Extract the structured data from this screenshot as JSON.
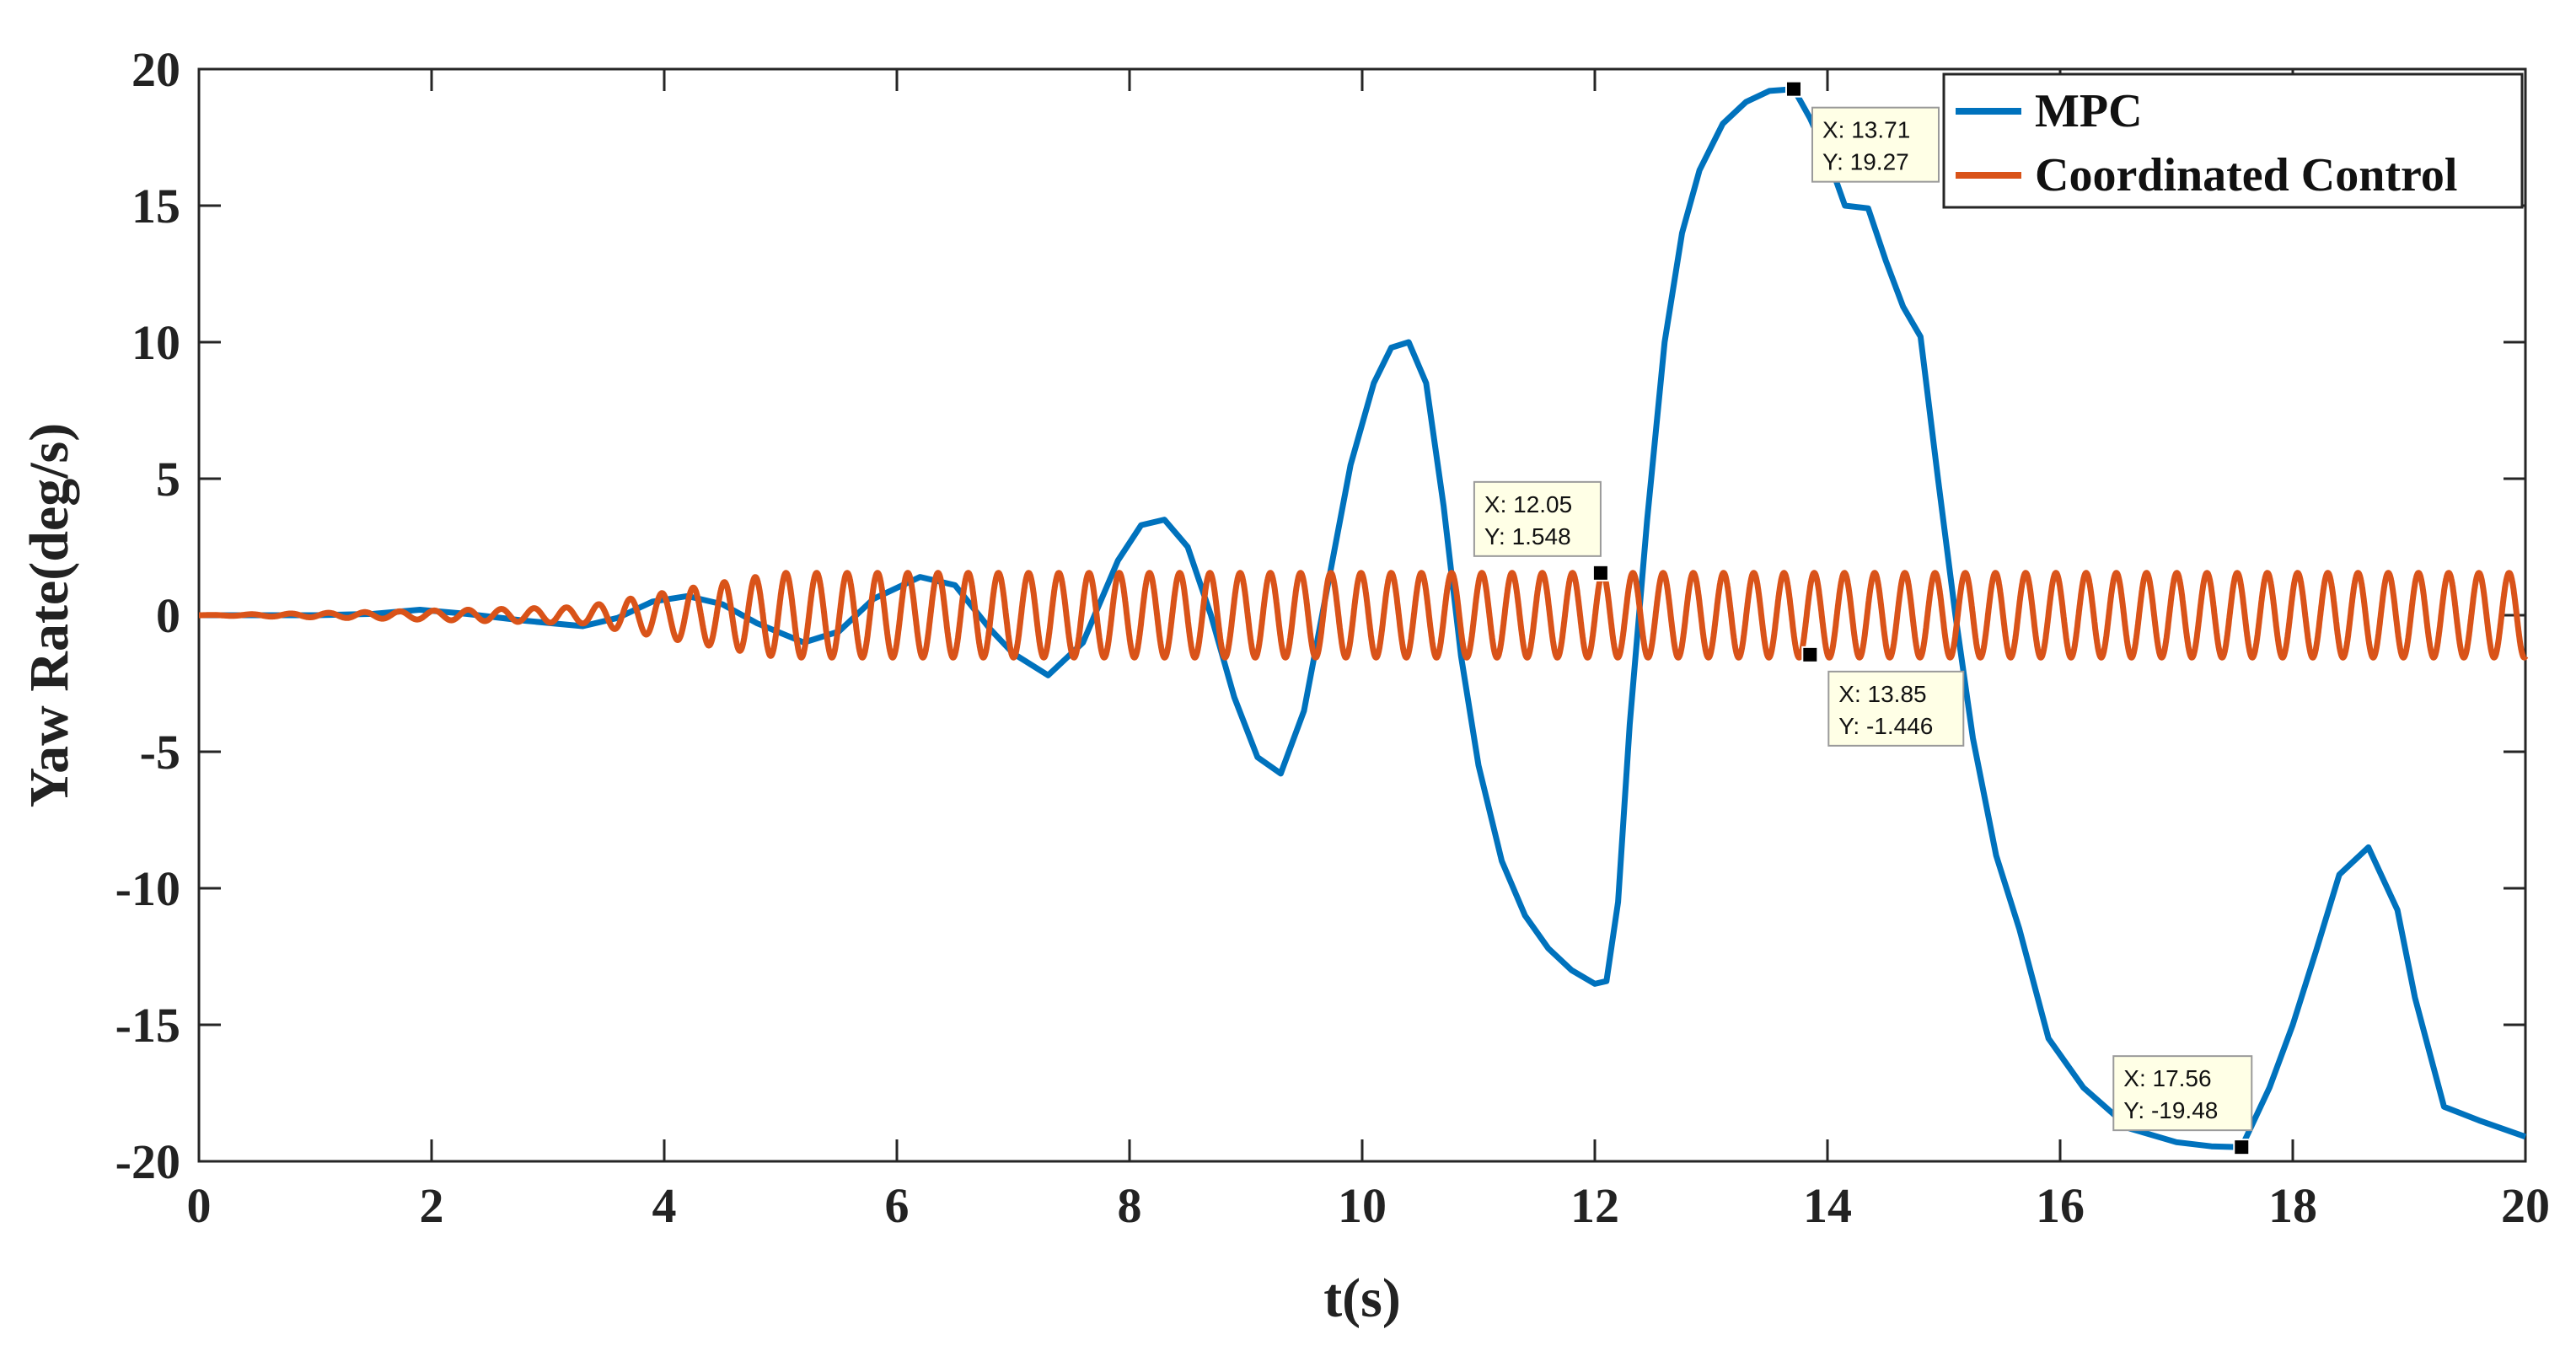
{
  "chart_data": {
    "type": "line",
    "xlabel": "t(s)",
    "ylabel": "Yaw Rate(deg/s)",
    "xlim": [
      0,
      20
    ],
    "ylim": [
      -20,
      20
    ],
    "xticks": [
      0,
      2,
      4,
      6,
      8,
      10,
      12,
      14,
      16,
      18,
      20
    ],
    "yticks": [
      -20,
      -15,
      -10,
      -5,
      0,
      5,
      10,
      15,
      20
    ],
    "grid": false,
    "legend_position": "top-right",
    "series": [
      {
        "name": "MPC",
        "color": "#0072BD",
        "x": [
          0,
          1.0,
          1.5,
          1.9,
          2.3,
          2.8,
          3.3,
          3.6,
          3.9,
          4.2,
          4.5,
          4.8,
          5.2,
          5.5,
          5.8,
          6.2,
          6.5,
          6.8,
          7.0,
          7.3,
          7.6,
          7.9,
          8.1,
          8.3,
          8.5,
          8.7,
          8.9,
          9.1,
          9.3,
          9.5,
          9.7,
          9.9,
          10.1,
          10.25,
          10.4,
          10.55,
          10.7,
          10.85,
          11.0,
          11.2,
          11.4,
          11.6,
          11.8,
          12.0,
          12.1,
          12.2,
          12.3,
          12.45,
          12.6,
          12.75,
          12.9,
          13.1,
          13.3,
          13.5,
          13.71,
          13.85,
          14.0,
          14.15,
          14.35,
          14.5,
          14.65,
          14.8,
          14.95,
          15.1,
          15.25,
          15.45,
          15.65,
          15.9,
          16.2,
          16.6,
          17.0,
          17.3,
          17.56,
          17.8,
          18.0,
          18.2,
          18.4,
          18.65,
          18.9,
          19.05,
          19.3,
          19.6,
          20.0
        ],
        "values": [
          0,
          0,
          0.05,
          0.2,
          0.05,
          -0.2,
          -0.4,
          -0.1,
          0.5,
          0.7,
          0.4,
          -0.3,
          -1.0,
          -0.6,
          0.6,
          1.4,
          1.1,
          -0.5,
          -1.4,
          -2.2,
          -1.0,
          2.0,
          3.3,
          3.5,
          2.5,
          0.0,
          -3.0,
          -5.2,
          -5.8,
          -3.5,
          1.0,
          5.5,
          8.5,
          9.8,
          10.0,
          8.5,
          4.0,
          -1.5,
          -5.5,
          -9.0,
          -11.0,
          -12.2,
          -13.0,
          -13.5,
          -13.4,
          -10.5,
          -4.0,
          3.5,
          10.0,
          14.0,
          16.3,
          18.0,
          18.8,
          19.2,
          19.27,
          18.2,
          16.8,
          15.0,
          14.9,
          13.0,
          11.3,
          10.2,
          5.0,
          0.0,
          -4.5,
          -8.8,
          -11.5,
          -15.5,
          -17.3,
          -18.8,
          -19.3,
          -19.45,
          -19.48,
          -17.3,
          -15.0,
          -12.3,
          -9.5,
          -8.5,
          -10.8,
          -14.0,
          -18.0,
          -18.5,
          -19.1
        ]
      },
      {
        "name": "Coordinated Control",
        "color": "#D95319",
        "equation": "y = A(t) * sin(2*pi*f(t)*t)",
        "amplitude_envelope": {
          "t": [
            0,
            1.5,
            3.3,
            4.5,
            5.0,
            20.0
          ],
          "A": [
            0,
            0.12,
            0.3,
            1.2,
            1.55,
            1.55
          ]
        },
        "frequency_envelope": {
          "t": [
            0,
            1.5,
            3.0,
            4.5,
            6.0,
            20.0
          ],
          "f": [
            2.7,
            3.3,
            3.6,
            3.75,
            3.85,
            3.85
          ]
        }
      }
    ],
    "annotations": [
      {
        "series": "MPC",
        "x": 13.71,
        "y": 19.27,
        "text_x": "X: 13.71",
        "text_y": "Y: 19.27"
      },
      {
        "series": "Coordinated Control",
        "x": 12.05,
        "y": 1.548,
        "text_x": "X: 12.05",
        "text_y": "Y: 1.548"
      },
      {
        "series": "Coordinated Control",
        "x": 13.85,
        "y": -1.446,
        "text_x": "X: 13.85",
        "text_y": "Y: -1.446"
      },
      {
        "series": "MPC",
        "x": 17.56,
        "y": -19.48,
        "text_x": "X: 17.56",
        "text_y": "Y: -19.48"
      }
    ]
  },
  "colors": {
    "axis": "#262626",
    "tooltip_bg": "#FFFFE6",
    "tooltip_border": "#9A9A9A",
    "marker": "#000000"
  }
}
